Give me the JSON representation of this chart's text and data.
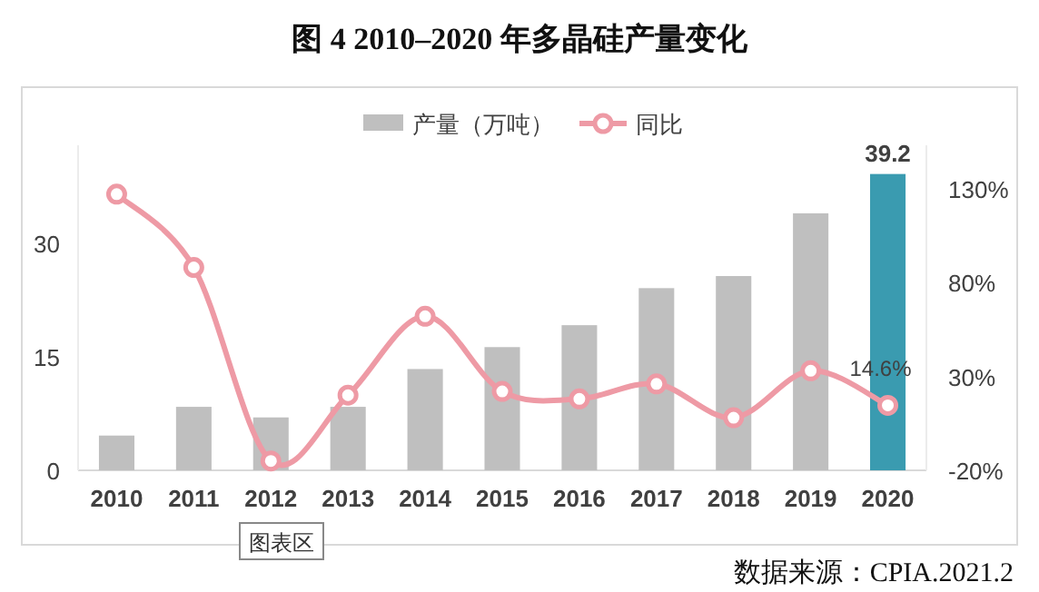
{
  "chart_data": {
    "type": "bar",
    "title": "图 4 2010–2020 年多晶硅产量变化",
    "categories": [
      "2010",
      "2011",
      "2012",
      "2013",
      "2014",
      "2015",
      "2016",
      "2017",
      "2018",
      "2019",
      "2020"
    ],
    "series": [
      {
        "name": "产量（万吨）",
        "color": "#bfbfbf",
        "colors": [
          "#bfbfbf",
          "#bfbfbf",
          "#bfbfbf",
          "#bfbfbf",
          "#bfbfbf",
          "#bfbfbf",
          "#bfbfbf",
          "#bfbfbf",
          "#bfbfbf",
          "#bfbfbf",
          "#3a9bb0"
        ],
        "values": [
          4.6,
          8.4,
          7.0,
          8.4,
          13.4,
          16.3,
          19.2,
          24.1,
          25.7,
          34.0,
          39.2
        ],
        "value_labels": [
          null,
          null,
          null,
          null,
          null,
          null,
          null,
          null,
          null,
          null,
          "39.2"
        ]
      },
      {
        "name": "同比",
        "type": "line",
        "axis": "y2",
        "color": "#ee9aa5",
        "marker": "circle",
        "values": [
          127,
          88,
          -15,
          20,
          62,
          22,
          18,
          26,
          8,
          33,
          14.6
        ],
        "value_labels": [
          null,
          null,
          null,
          null,
          null,
          null,
          null,
          null,
          null,
          null,
          "14.6%"
        ]
      }
    ],
    "ylim": [
      0,
      43
    ],
    "yticks": [
      0,
      15,
      30
    ],
    "y2lim": [
      -20,
      153
    ],
    "y2ticks": [
      {
        "value": -20,
        "label": "-20%"
      },
      {
        "value": 30,
        "label": "30%"
      },
      {
        "value": 80,
        "label": "80%"
      },
      {
        "value": 130,
        "label": "130%"
      }
    ],
    "grid": false,
    "legend": "top",
    "annotations": [
      "图表区",
      "数据来源：CPIA.2021.2"
    ]
  }
}
